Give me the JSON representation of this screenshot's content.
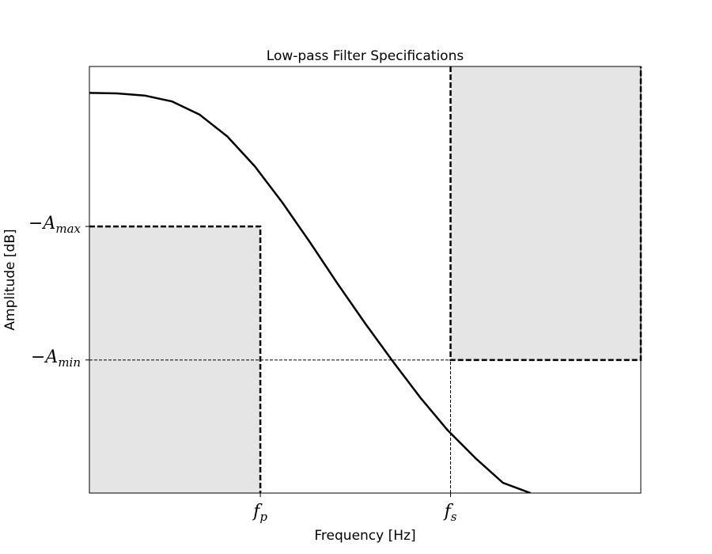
{
  "chart_data": {
    "type": "line",
    "title": "Low-pass Filter Specifications",
    "xlabel": "Frequency [Hz]",
    "ylabel": "Amplitude [dB]",
    "x_ticks": [
      {
        "label_main": "f",
        "label_sub": "p",
        "value": 0.31
      },
      {
        "label_main": "f",
        "label_sub": "s",
        "value": 0.655
      }
    ],
    "y_ticks": [
      {
        "label_main": "−A",
        "label_sub": "max",
        "value": 0.625
      },
      {
        "label_main": "−A",
        "label_sub": "min",
        "value": 0.312
      }
    ],
    "xlim": [
      0,
      1
    ],
    "ylim": [
      0,
      1
    ],
    "grid": false,
    "series": [
      {
        "curve_color": "#000000",
        "x": [
          0.0,
          0.05,
          0.1,
          0.15,
          0.2,
          0.25,
          0.3,
          0.35,
          0.4,
          0.45,
          0.5,
          0.55,
          0.6,
          0.65,
          0.7,
          0.75,
          0.8
        ],
        "values": [
          0.938,
          0.937,
          0.932,
          0.918,
          0.887,
          0.836,
          0.766,
          0.681,
          0.588,
          0.491,
          0.398,
          0.309,
          0.224,
          0.147,
          0.082,
          0.024,
          0.0
        ]
      }
    ],
    "regions": [
      {
        "name": "passband",
        "x": [
          0.0,
          0.31
        ],
        "y": [
          0.0,
          0.625
        ],
        "fill": "#e5e5e5"
      },
      {
        "name": "stopband",
        "x": [
          0.655,
          1.0
        ],
        "y": [
          0.312,
          1.0
        ],
        "fill": "#e5e5e5"
      }
    ]
  }
}
